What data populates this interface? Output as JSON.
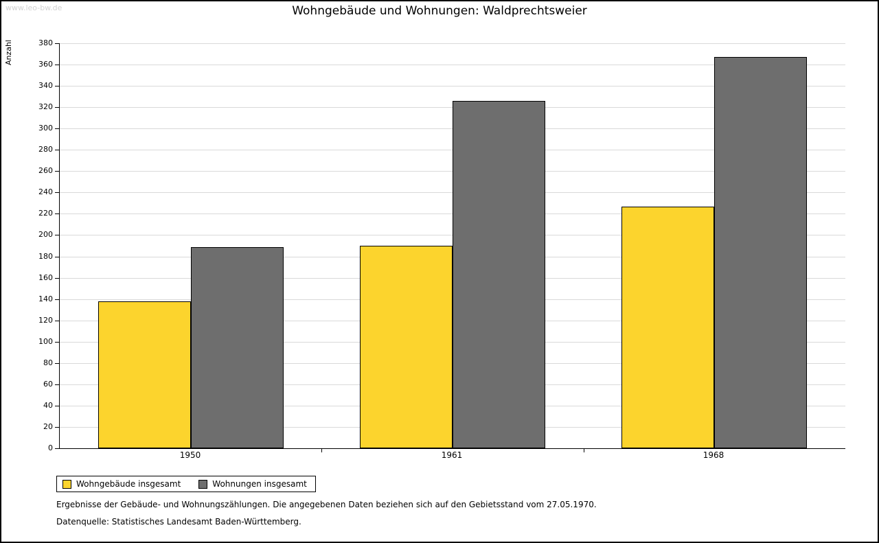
{
  "watermark": "www.leo-bw.de",
  "chart_data": {
    "type": "bar",
    "title": "Wohngebäude und Wohnungen: Waldprechtsweier",
    "xlabel": "",
    "ylabel": "Anzahl",
    "categories": [
      "1950",
      "1961",
      "1968"
    ],
    "series": [
      {
        "name": "Wohngebäude insgesamt",
        "color": "#fcd42d",
        "values": [
          138,
          190,
          227
        ]
      },
      {
        "name": "Wohnungen insgesamt",
        "color": "#6e6e6e",
        "values": [
          189,
          326,
          367
        ]
      }
    ],
    "ylim": [
      0,
      380
    ],
    "ytick_step": 20,
    "grid": true,
    "legend_position": "bottom-left"
  },
  "footnotes": {
    "line1": "Ergebnisse der Gebäude- und Wohnungszählungen. Die angegebenen Daten beziehen sich auf den Gebietsstand vom 27.05.1970.",
    "line2": "Datenquelle: Statistisches Landesamt Baden-Württemberg."
  }
}
